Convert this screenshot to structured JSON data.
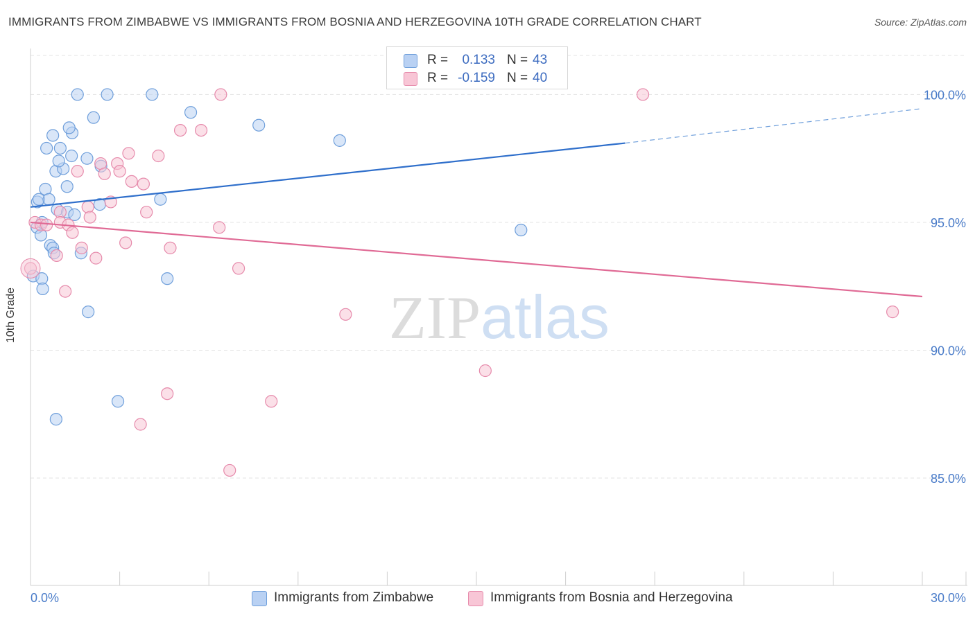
{
  "chart_data": {
    "type": "scatter",
    "title": "IMMIGRANTS FROM ZIMBABWE VS IMMIGRANTS FROM BOSNIA AND HERZEGOVINA 10TH GRADE CORRELATION CHART",
    "source": "Source: ZipAtlas.com",
    "xlabel": "",
    "ylabel": "10th Grade",
    "xlim": [
      0,
      30
    ],
    "ylim": [
      80.8,
      101.8
    ],
    "x_tick_labels": [
      {
        "value": 0,
        "label": "0.0%"
      },
      {
        "value": 30,
        "label": "30.0%"
      }
    ],
    "y_tick_labels": [
      {
        "value": 100,
        "label": "100.0%"
      },
      {
        "value": 95,
        "label": "95.0%"
      },
      {
        "value": 90,
        "label": "90.0%"
      },
      {
        "value": 85,
        "label": "85.0%"
      }
    ],
    "grid": true,
    "watermark": {
      "part1": "ZIP",
      "part2": "atlas"
    },
    "series": [
      {
        "name": "Immigrants from Zimbabwe",
        "color": "#6f9fdb",
        "fill": "#b9d1f3",
        "r": "0.133",
        "n": "43",
        "points": [
          [
            1.58,
            100.0
          ],
          [
            2.58,
            100.0
          ],
          [
            4.09,
            100.0
          ],
          [
            0.75,
            98.4
          ],
          [
            1.4,
            98.5
          ],
          [
            1.3,
            98.7
          ],
          [
            1.0,
            97.9
          ],
          [
            0.54,
            97.9
          ],
          [
            0.85,
            97.0
          ],
          [
            1.1,
            97.1
          ],
          [
            1.38,
            97.6
          ],
          [
            0.95,
            97.4
          ],
          [
            1.9,
            97.5
          ],
          [
            2.37,
            97.2
          ],
          [
            2.12,
            99.1
          ],
          [
            5.39,
            99.3
          ],
          [
            7.68,
            98.8
          ],
          [
            10.4,
            98.2
          ],
          [
            0.5,
            96.3
          ],
          [
            1.23,
            96.4
          ],
          [
            0.23,
            95.8
          ],
          [
            0.28,
            95.9
          ],
          [
            0.62,
            95.9
          ],
          [
            0.9,
            95.5
          ],
          [
            1.24,
            95.4
          ],
          [
            1.48,
            95.3
          ],
          [
            2.33,
            95.7
          ],
          [
            4.37,
            95.9
          ],
          [
            0.22,
            94.8
          ],
          [
            0.35,
            94.5
          ],
          [
            0.39,
            95.0
          ],
          [
            0.67,
            94.1
          ],
          [
            0.75,
            94.0
          ],
          [
            0.79,
            93.8
          ],
          [
            1.7,
            93.8
          ],
          [
            16.5,
            94.7
          ],
          [
            0.09,
            92.9
          ],
          [
            0.38,
            92.8
          ],
          [
            0.41,
            92.4
          ],
          [
            4.6,
            92.8
          ],
          [
            1.94,
            91.5
          ],
          [
            2.94,
            88.0
          ],
          [
            0.86,
            87.3
          ]
        ],
        "trend": {
          "x0": 0,
          "y0": 95.6,
          "x1": 20.0,
          "y1": 98.1,
          "dash_to_x": 30,
          "dash_to_y": 99.45
        }
      },
      {
        "name": "Immigrants from Bosnia and Herzegovina",
        "color": "#e68aab",
        "fill": "#f8c6d6",
        "r": "-0.159",
        "n": "40",
        "points": [
          [
            6.4,
            100.0
          ],
          [
            20.6,
            100.0
          ],
          [
            5.04,
            98.6
          ],
          [
            5.74,
            98.6
          ],
          [
            3.3,
            97.7
          ],
          [
            4.3,
            97.6
          ],
          [
            2.36,
            97.3
          ],
          [
            2.92,
            97.3
          ],
          [
            1.58,
            97.0
          ],
          [
            2.49,
            96.9
          ],
          [
            3.0,
            97.0
          ],
          [
            3.4,
            96.6
          ],
          [
            3.8,
            96.5
          ],
          [
            2.7,
            95.8
          ],
          [
            1.93,
            95.6
          ],
          [
            2.0,
            95.2
          ],
          [
            3.9,
            95.4
          ],
          [
            1.0,
            95.4
          ],
          [
            0.15,
            95.0
          ],
          [
            0.35,
            94.9
          ],
          [
            0.54,
            94.9
          ],
          [
            1.0,
            95.0
          ],
          [
            1.27,
            94.9
          ],
          [
            1.41,
            94.6
          ],
          [
            6.35,
            94.8
          ],
          [
            3.2,
            94.2
          ],
          [
            1.72,
            94.0
          ],
          [
            4.7,
            94.0
          ],
          [
            0.88,
            93.7
          ],
          [
            2.2,
            93.6
          ],
          [
            7.0,
            93.2
          ],
          [
            0.0,
            93.2
          ],
          [
            1.17,
            92.3
          ],
          [
            10.6,
            91.4
          ],
          [
            29.0,
            91.5
          ],
          [
            15.3,
            89.2
          ],
          [
            4.6,
            88.3
          ],
          [
            8.1,
            88.0
          ],
          [
            3.7,
            87.1
          ],
          [
            6.7,
            85.3
          ]
        ],
        "trend": {
          "x0": 0,
          "y0": 95.0,
          "x1": 30,
          "y1": 92.1
        }
      }
    ]
  }
}
